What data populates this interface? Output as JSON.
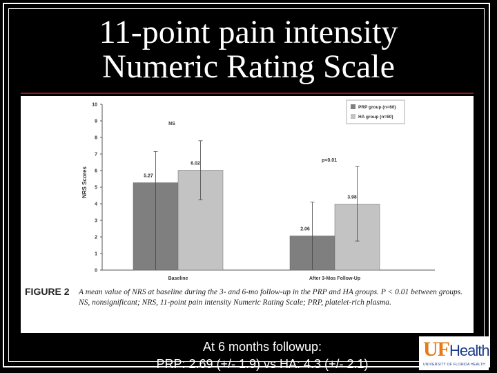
{
  "slide": {
    "title_line1": "11-point pain intensity",
    "title_line2": "Numeric Rating Scale",
    "summary_line1": "At 6 months followup:",
    "summary_line2": "PRP:  2.69 (+/- 1.9) vs HA:  4.3 (+/- 2.1)",
    "logo_uf": "UF",
    "logo_health": "Health",
    "logo_sub": "UNIVERSITY OF FLORIDA HEALTH"
  },
  "figure": {
    "label": "FIGURE 2",
    "caption": "A mean value of NRS at baseline during the 3- and 6-mo follow-up in the PRP and HA groups. P < 0.01 between groups. NS, nonsignificant; NRS, 11-point pain intensity Numeric Rating Scale; PRP, platelet-rich plasma."
  },
  "colors": {
    "prp": "#7f7f7f",
    "ha": "#c3c3c3",
    "accent_rule": "#8b1a1a"
  },
  "chart_data": {
    "type": "bar",
    "title": "",
    "xlabel": "",
    "ylabel": "NRS Scores",
    "ylim": [
      0,
      10
    ],
    "yticks": [
      "0",
      "1",
      "2",
      "3",
      "4",
      "5",
      "6",
      "7",
      "8",
      "9",
      "10"
    ],
    "categories": [
      "Baseline",
      "After 3-Mos Follow-Up"
    ],
    "series": [
      {
        "name": "PRP group (n=60)",
        "values": [
          5.27,
          2.06
        ],
        "labels": [
          "5.27",
          "2.06"
        ],
        "err_low": [
          0,
          0
        ],
        "err_high": [
          7.15,
          4.1
        ]
      },
      {
        "name": "HA group (n=60)",
        "values": [
          6.02,
          3.98
        ],
        "labels": [
          "6.02",
          "3.98"
        ],
        "err_low": [
          4.25,
          1.75
        ],
        "err_high": [
          7.8,
          6.25
        ]
      }
    ],
    "annotations": [
      "NS",
      "p<0.01"
    ],
    "legend_position": "top-right"
  }
}
